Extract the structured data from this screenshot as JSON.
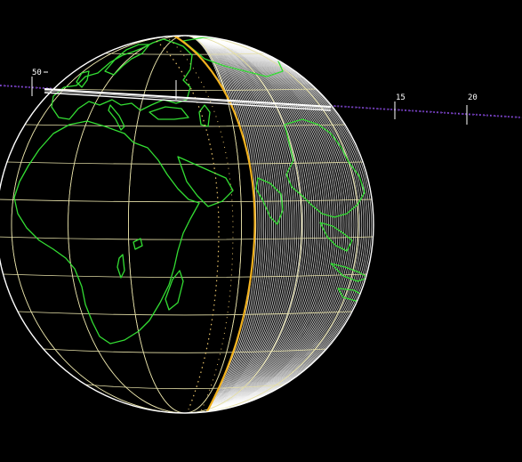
{
  "scene": {
    "background_color": "#000000",
    "globe": {
      "coastline_color": "#33dd33",
      "graticule_color": "#e6e0a8",
      "hatch_color": "#ffffff",
      "terminator_color": "#f2b21e",
      "terminator_dotted_color": "#e9c46a",
      "outline_color": "#ffffff"
    },
    "scale_track": {
      "color": "#6633aa",
      "tick_labels": [
        "50",
        "15",
        "20"
      ]
    }
  }
}
